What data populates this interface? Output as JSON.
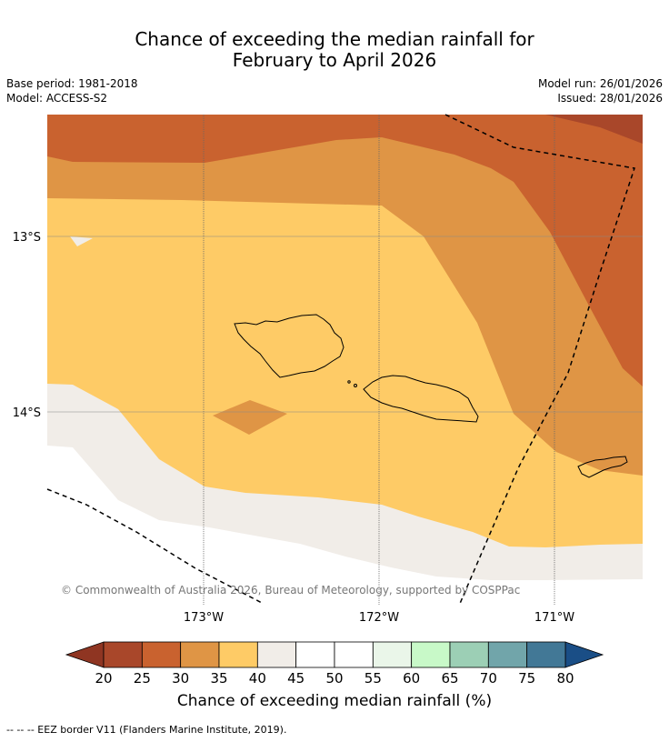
{
  "title_line1": "Chance of exceeding the median rainfall for",
  "title_line2": "February to April 2026",
  "base_period": "Base period: 1981-2018",
  "model": "Model: ACCESS-S2",
  "model_run": "Model run: 26/01/2026",
  "issued": "Issued: 28/01/2026",
  "copyright": "© Commonwealth of Australia 2026, Bureau of Meteorology, supported by COSPPac",
  "lat_labels": [
    "13°S",
    "14°S"
  ],
  "lon_labels": [
    "173°W",
    "172°W",
    "171°W"
  ],
  "colorbar": {
    "title": "Chance of exceeding median rainfall (%)",
    "ticks": [
      "20",
      "25",
      "30",
      "35",
      "40",
      "45",
      "50",
      "55",
      "60",
      "65",
      "70",
      "75",
      "80"
    ],
    "colors": [
      "#a9472a",
      "#c9622f",
      "#df9545",
      "#fecb66",
      "#f1ede8",
      "#ffffff",
      "#ffffff",
      "#eaf6e9",
      "#c8f9c8",
      "#9ccfb5",
      "#71a5aa",
      "#427896"
    ],
    "under_color": "#8f3522",
    "over_color": "#1a4e86"
  },
  "footnote": "-- -- -- EEZ border V11 (Flanders Marine Institute, 2019)."
}
